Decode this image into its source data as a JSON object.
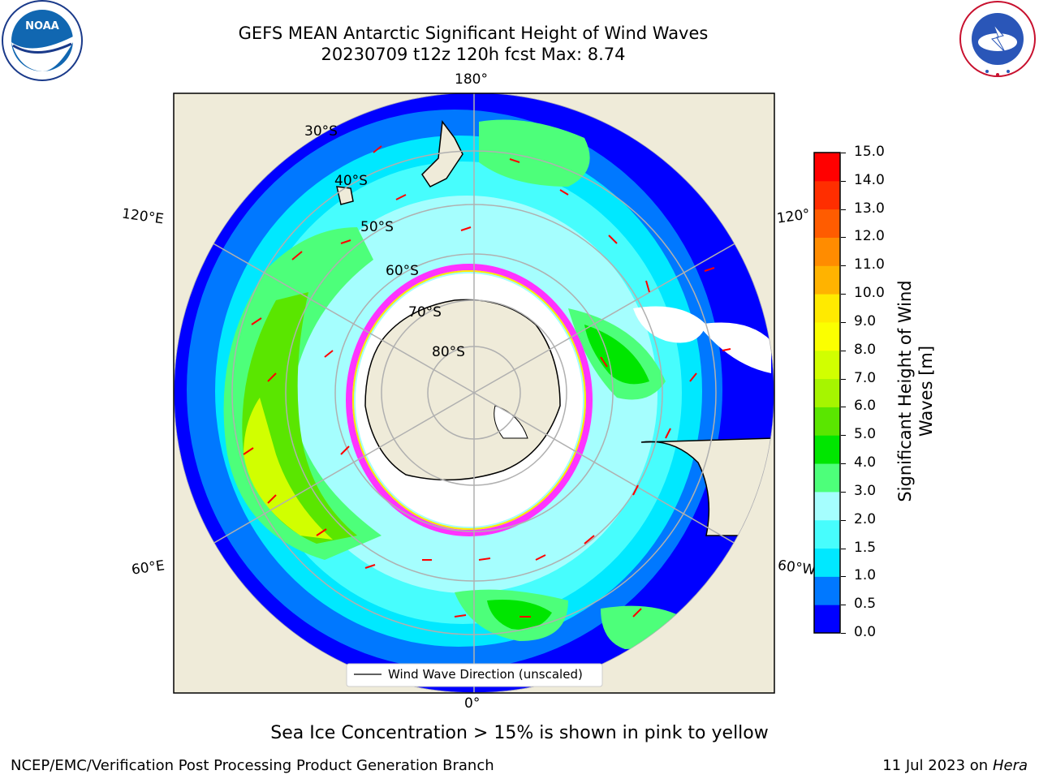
{
  "header": {
    "title_line1": "GEFS MEAN Antarctic Significant Height of Wind Waves",
    "title_line2": "20230709 t12z 120h fcst   Max: 8.74"
  },
  "logos": {
    "noara_left_text": "NOAA",
    "nws_right_text": "NATIONAL WEATHER SERVICE"
  },
  "map": {
    "lon_labels": {
      "top": "180°",
      "bottom": "0°",
      "left_upper": "120°E",
      "left_lower": "60°E",
      "right_upper": "120°",
      "right_lower": "60°W"
    },
    "lat_labels": [
      "30°S",
      "40°S",
      "50°S",
      "60°S",
      "70°S",
      "80°S"
    ],
    "legend_label": "Wind Wave Direction (unscaled)",
    "colors": {
      "land": "#efebd9",
      "ice_edge": "#ff33ff",
      "arrow": "#ff0000",
      "grid": "#b0b0b0"
    }
  },
  "colorbar": {
    "label": "Significant Height of Wind Waves [m]",
    "ticks": [
      "0.0",
      "0.5",
      "1.0",
      "1.5",
      "2.0",
      "3.0",
      "4.0",
      "5.0",
      "6.0",
      "7.0",
      "8.0",
      "9.0",
      "10.0",
      "11.0",
      "12.0",
      "13.0",
      "14.0",
      "15.0"
    ],
    "colors": [
      "#0000ff",
      "#0078ff",
      "#00e8ff",
      "#47fdfd",
      "#a5fefe",
      "#4dff7a",
      "#00e600",
      "#5ae600",
      "#a6f500",
      "#d1ff00",
      "#fbff00",
      "#ffea00",
      "#ffb300",
      "#ff8c00",
      "#ff5c00",
      "#ff2e00",
      "#ff0000"
    ]
  },
  "captions": {
    "sea_ice": "Sea Ice Concentration > 15% is shown in pink to yellow",
    "credit": "NCEP/EMC/Verification Post Processing Product Generation Branch",
    "date": "11 Jul 2023 on ",
    "machine": "Hera"
  }
}
